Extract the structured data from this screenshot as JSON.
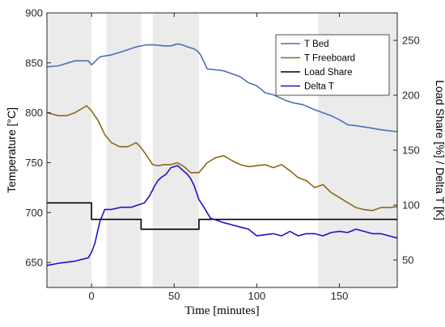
{
  "chart_data": {
    "type": "line",
    "xlabel": "Time [minutes]",
    "ylabel_left": "Temperature [°C]",
    "ylabel_right": "Load Share [%] / Delta T [K]",
    "xlim": [
      -27,
      185
    ],
    "ylim_left": [
      625,
      900
    ],
    "ylim_right": [
      25,
      275
    ],
    "xticks": [
      0,
      50,
      100,
      150
    ],
    "yticks_left": [
      650,
      700,
      750,
      800,
      850,
      900
    ],
    "yticks_right": [
      50,
      100,
      150,
      200,
      250
    ],
    "grid": false,
    "legend_placement": "top-right",
    "shaded_regions": [
      [
        -27,
        0
      ],
      [
        9,
        30
      ],
      [
        37,
        65
      ],
      [
        137,
        185
      ]
    ],
    "shade_color": "#ebebeb",
    "series": [
      {
        "name": "T Bed",
        "axis": "left",
        "color": "#4a6fb6",
        "x": [
          -27,
          -20,
          -10,
          -2,
          0,
          5,
          12,
          20,
          27,
          33,
          38,
          44,
          48,
          52,
          55,
          58,
          62,
          64,
          66,
          70,
          75,
          80,
          87,
          90,
          95,
          100,
          103,
          105,
          110,
          118,
          122,
          128,
          135,
          140,
          145,
          150,
          155,
          160,
          168,
          175,
          180,
          185
        ],
        "y": [
          846,
          847,
          852,
          852,
          848,
          856,
          858,
          862,
          866,
          868,
          868,
          867,
          867,
          869,
          868,
          866,
          864,
          862,
          858,
          844,
          843,
          842,
          838,
          836,
          830,
          827,
          823,
          820,
          818,
          812,
          810,
          808,
          803,
          800,
          797,
          793,
          788,
          787,
          785,
          783,
          782,
          781
        ]
      },
      {
        "name": "T Freeboard",
        "axis": "left",
        "color": "#8b6914",
        "x": [
          -27,
          -20,
          -15,
          -10,
          -7,
          -3,
          0,
          4,
          8,
          12,
          17,
          22,
          27,
          30,
          33,
          37,
          40,
          44,
          48,
          52,
          56,
          60,
          65,
          70,
          75,
          80,
          85,
          90,
          95,
          100,
          105,
          110,
          115,
          120,
          125,
          130,
          135,
          140,
          145,
          150,
          155,
          160,
          165,
          170,
          175,
          180,
          185
        ],
        "y": [
          800,
          797,
          797,
          800,
          803,
          807,
          802,
          792,
          778,
          770,
          766,
          766,
          770,
          765,
          758,
          748,
          747,
          748,
          748,
          750,
          746,
          740,
          740,
          750,
          755,
          757,
          752,
          748,
          746,
          747,
          748,
          745,
          748,
          742,
          735,
          732,
          725,
          728,
          720,
          715,
          710,
          705,
          703,
          702,
          705,
          705,
          706
        ]
      },
      {
        "name": "Load Share",
        "axis": "right",
        "color": "#000000",
        "x": [
          -27,
          0,
          0,
          30,
          30,
          65,
          65,
          185
        ],
        "y": [
          102,
          102,
          87,
          87,
          78,
          78,
          87,
          87
        ]
      },
      {
        "name": "Delta T",
        "axis": "right",
        "color": "#1a14c8",
        "x": [
          -27,
          -20,
          -10,
          -2,
          0,
          2,
          5,
          8,
          12,
          18,
          24,
          28,
          32,
          35,
          38,
          40,
          42,
          45,
          48,
          52,
          55,
          58,
          60,
          62,
          65,
          68,
          72,
          76,
          80,
          85,
          90,
          95,
          100,
          105,
          110,
          115,
          120,
          125,
          130,
          135,
          140,
          145,
          150,
          155,
          160,
          165,
          170,
          175,
          180,
          185
        ],
        "y": [
          45,
          47,
          49,
          52,
          57,
          65,
          85,
          96,
          96,
          98,
          98,
          100,
          102,
          108,
          117,
          122,
          125,
          128,
          134,
          136,
          132,
          128,
          124,
          118,
          105,
          98,
          88,
          86,
          84,
          82,
          80,
          78,
          72,
          73,
          74,
          72,
          76,
          72,
          74,
          74,
          72,
          75,
          76,
          75,
          78,
          76,
          74,
          74,
          72,
          70
        ]
      }
    ]
  }
}
